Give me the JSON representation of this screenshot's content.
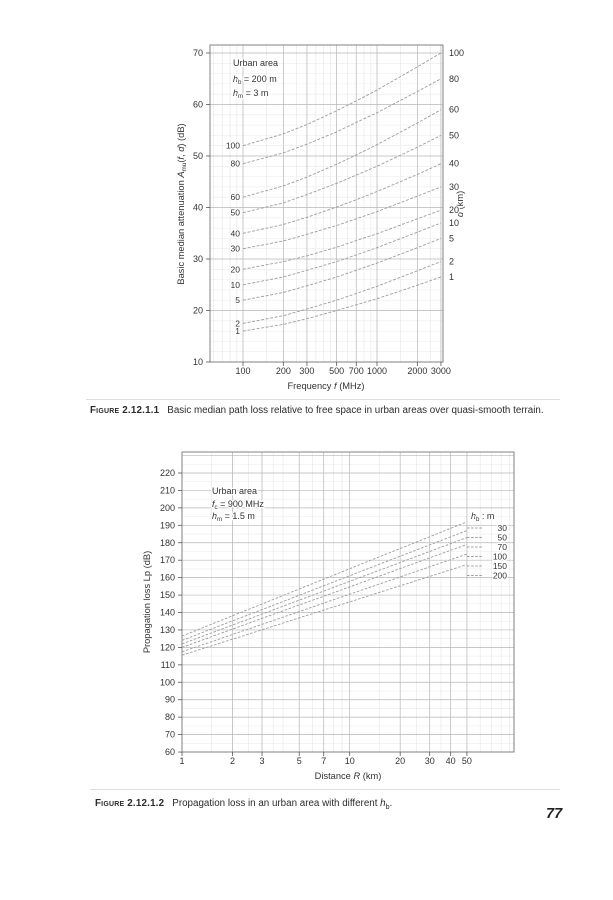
{
  "page": {
    "number": "77"
  },
  "figures": [
    {
      "label": "Figure 2.12.1.1",
      "text": "Basic median path loss relative to free space in urban areas over quasi-smooth terrain."
    },
    {
      "label": "Figure 2.12.1.2",
      "text": "Propagation loss in an urban area with different ",
      "variable": "h",
      "variable_sub": "b",
      "end": "."
    }
  ],
  "chart_data": [
    {
      "type": "line",
      "xscale": "log",
      "grid": true,
      "annotations": [
        [
          {
            "t": "Urban area"
          }
        ],
        [
          {
            "i": "h"
          },
          {
            "sub": "b"
          },
          {
            "t": " = 200 m"
          }
        ],
        [
          {
            "i": "h"
          },
          {
            "sub": "m"
          },
          {
            "t": " = 3 m"
          }
        ]
      ],
      "xlabel_parts": [
        {
          "t": "Frequency "
        },
        {
          "i": "f"
        },
        {
          "t": " (MHz)"
        }
      ],
      "ylabel_parts": [
        {
          "t": "Basic median attenuation "
        },
        {
          "i": "A"
        },
        {
          "sub": "mu"
        },
        {
          "t": "("
        },
        {
          "i": "f"
        },
        {
          "t": ", "
        },
        {
          "i": "d"
        },
        {
          "t": ") (dB)"
        }
      ],
      "y2label_parts": [
        {
          "i": "d"
        },
        {
          "t": " (km)"
        }
      ],
      "xlim": [
        55,
        3000
      ],
      "ylim": [
        10,
        71.5
      ],
      "x_ticks": [
        100,
        200,
        300,
        500,
        700,
        1000,
        2000,
        3000
      ],
      "y_ticks": [
        70,
        60,
        50,
        40,
        30,
        20,
        10
      ],
      "x": [
        100,
        200,
        300,
        500,
        700,
        1000,
        2000,
        3000
      ],
      "series_unit": "d (km)",
      "series": [
        {
          "name": "100",
          "values": [
            52,
            54.3,
            56.1,
            58.8,
            60.7,
            62.8,
            67.3,
            70
          ]
        },
        {
          "name": "80",
          "values": [
            48.5,
            50.6,
            52.3,
            54.7,
            56.5,
            58.4,
            62.5,
            65
          ]
        },
        {
          "name": "60",
          "values": [
            42,
            44.2,
            45.9,
            48.4,
            50.2,
            52.2,
            56.4,
            59
          ]
        },
        {
          "name": "50",
          "values": [
            39,
            40.9,
            42.5,
            44.7,
            46.3,
            48.0,
            51.7,
            54
          ]
        },
        {
          "name": "40",
          "values": [
            35,
            36.7,
            38.1,
            40.1,
            41.5,
            43.1,
            46.4,
            48.5
          ]
        },
        {
          "name": "30",
          "values": [
            32,
            33.5,
            34.8,
            36.5,
            37.8,
            39.2,
            42.2,
            44
          ]
        },
        {
          "name": "20",
          "values": [
            28,
            29.5,
            30.6,
            32.3,
            33.6,
            34.9,
            37.8,
            39.5
          ]
        },
        {
          "name": "10",
          "values": [
            25,
            26.5,
            27.8,
            29.5,
            30.8,
            32.2,
            35.2,
            37
          ]
        },
        {
          "name": "5",
          "values": [
            22,
            23.5,
            24.8,
            26.5,
            27.8,
            29.2,
            32.2,
            34
          ]
        },
        {
          "name": "2",
          "values": [
            17.5,
            19.0,
            20.3,
            22.0,
            23.3,
            24.7,
            27.7,
            29.5
          ]
        },
        {
          "name": "1",
          "values": [
            16,
            17.3,
            18.4,
            20.0,
            21.1,
            22.3,
            24.9,
            26.5
          ]
        }
      ]
    },
    {
      "type": "line",
      "xscale": "log",
      "grid": true,
      "annotations": [
        [
          {
            "t": "Urban area"
          }
        ],
        [
          {
            "i": "f"
          },
          {
            "sub": "c"
          },
          {
            "t": " = 900 MHz"
          }
        ],
        [
          {
            "i": "h"
          },
          {
            "sub": "m"
          },
          {
            "t": " = 1.5 m"
          }
        ]
      ],
      "xlabel_parts": [
        {
          "t": "Distance "
        },
        {
          "i": "R"
        },
        {
          "t": " (km)"
        }
      ],
      "ylabel_parts": [
        {
          "t": "Propagation loss Lp (dB)"
        }
      ],
      "xlim": [
        1,
        100
      ],
      "ylim": [
        60,
        232
      ],
      "x_ticks": [
        1,
        2,
        3,
        5,
        7,
        10,
        20,
        30,
        40,
        50
      ],
      "y_ticks": [
        220,
        210,
        200,
        190,
        180,
        170,
        160,
        150,
        140,
        130,
        120,
        110,
        100,
        90,
        80,
        70,
        60
      ],
      "x": [
        1,
        2,
        3,
        5,
        7,
        10,
        20,
        30,
        50
      ],
      "series_unit": "hb (m)",
      "legend": {
        "title_parts": [
          {
            "i": "h"
          },
          {
            "sub": "b"
          },
          {
            "t": " : m"
          }
        ],
        "entries": [
          "30",
          "50",
          "70",
          "100",
          "150",
          "200"
        ]
      },
      "series": [
        {
          "name": "30",
          "values": [
            126.5,
            138.1,
            144.9,
            153.5,
            159.1,
            165.1,
            176.7,
            183.4,
            192
          ]
        },
        {
          "name": "50",
          "values": [
            124,
            135.2,
            141.7,
            149.9,
            155.3,
            161.1,
            172.3,
            178.8,
            187
          ]
        },
        {
          "name": "70",
          "values": [
            122,
            132.8,
            139.1,
            147.1,
            152.3,
            157.9,
            168.7,
            175.0,
            183
          ]
        },
        {
          "name": "100",
          "values": [
            120,
            130.5,
            136.6,
            144.3,
            149.3,
            154.7,
            165.2,
            171.3,
            179
          ]
        },
        {
          "name": "150",
          "values": [
            117.5,
            127.4,
            133.2,
            140.5,
            145.4,
            150.5,
            160.4,
            166.2,
            173.5
          ]
        },
        {
          "name": "200",
          "values": [
            115.5,
            124.7,
            130.1,
            136.9,
            141.4,
            146.1,
            155.3,
            160.7,
            167.5
          ]
        }
      ]
    }
  ]
}
